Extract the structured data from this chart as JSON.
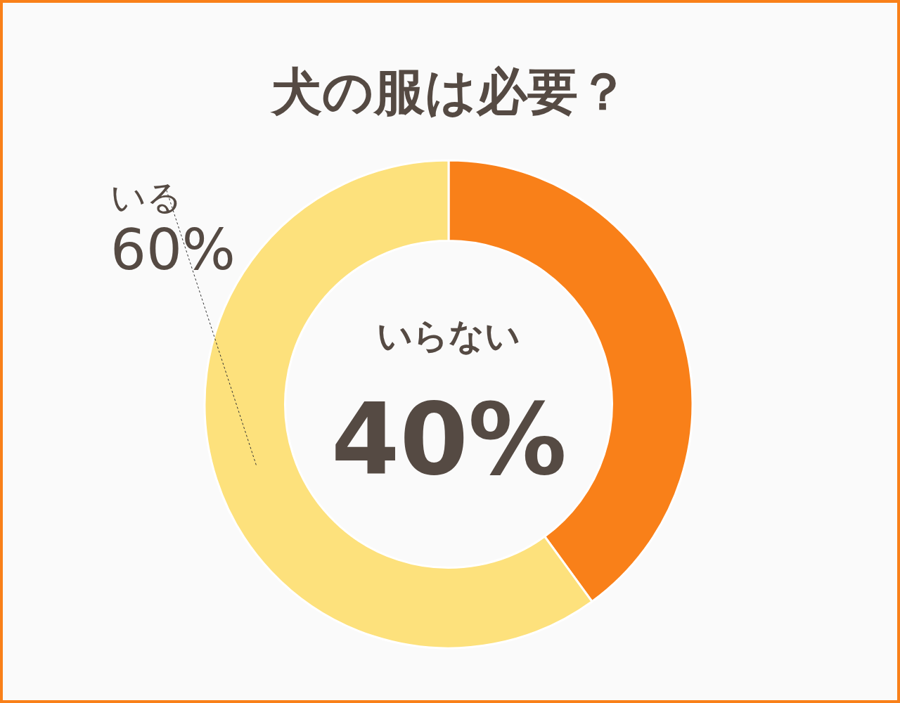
{
  "chart_data": {
    "type": "donut",
    "title": "犬の服は必要？",
    "categories": [
      "いらない",
      "いる"
    ],
    "values": [
      40,
      60
    ],
    "colors": [
      "#f98019",
      "#fde17c"
    ],
    "value_labels": [
      "40%",
      "60%"
    ],
    "legend": false
  }
}
